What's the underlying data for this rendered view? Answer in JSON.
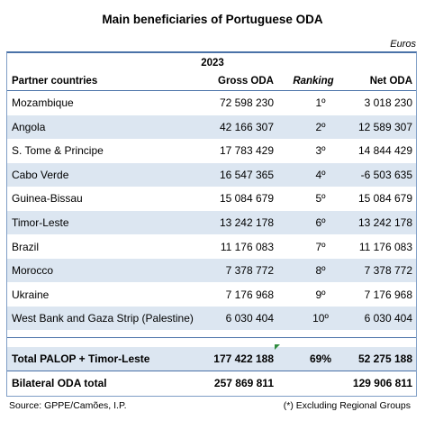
{
  "title": "Main beneficiaries of Portuguese ODA",
  "unit": "Euros",
  "header": {
    "year": "2023",
    "col_partner": "Partner countries",
    "col_gross": "Gross ODA",
    "col_ranking": "Ranking",
    "col_net": "Net ODA"
  },
  "rows": [
    {
      "country": "Mozambique",
      "gross": "72 598 230",
      "rank": "1º",
      "net": "3 018 230"
    },
    {
      "country": "Angola",
      "gross": "42 166 307",
      "rank": "2º",
      "net": "12 589 307"
    },
    {
      "country": "S. Tome & Principe",
      "gross": "17 783 429",
      "rank": "3º",
      "net": "14 844 429"
    },
    {
      "country": "Cabo Verde",
      "gross": "16 547 365",
      "rank": "4º",
      "net": "-6 503 635"
    },
    {
      "country": "Guinea-Bissau",
      "gross": "15 084 679",
      "rank": "5º",
      "net": "15 084 679"
    },
    {
      "country": "Timor-Leste",
      "gross": "13 242 178",
      "rank": "6º",
      "net": "13 242 178"
    },
    {
      "country": "Brazil",
      "gross": "11 176 083",
      "rank": "7º",
      "net": "11 176 083"
    },
    {
      "country": "Morocco",
      "gross": "7 378 772",
      "rank": "8º",
      "net": "7 378 772"
    },
    {
      "country": "Ukraine",
      "gross": "7 176 968",
      "rank": "9º",
      "net": "7 176 968"
    },
    {
      "country": "West Bank and Gaza Strip (Palestine)",
      "gross": "6 030 404",
      "rank": "10º",
      "net": "6 030 404"
    }
  ],
  "totals": [
    {
      "label": "Total PALOP + Timor-Leste",
      "gross": "177 422 188",
      "rank": "69%",
      "net": "52 275 188"
    },
    {
      "label": "Bilateral ODA total",
      "gross": "257 869 811",
      "rank": "",
      "net": "129 906 811"
    }
  ],
  "footer": {
    "source": "Source: GPPE/Camões, I.P.",
    "note": "(*) Excluding Regional Groups"
  },
  "colors": {
    "shade": "#dce6f1",
    "border": "#4a72a8"
  }
}
